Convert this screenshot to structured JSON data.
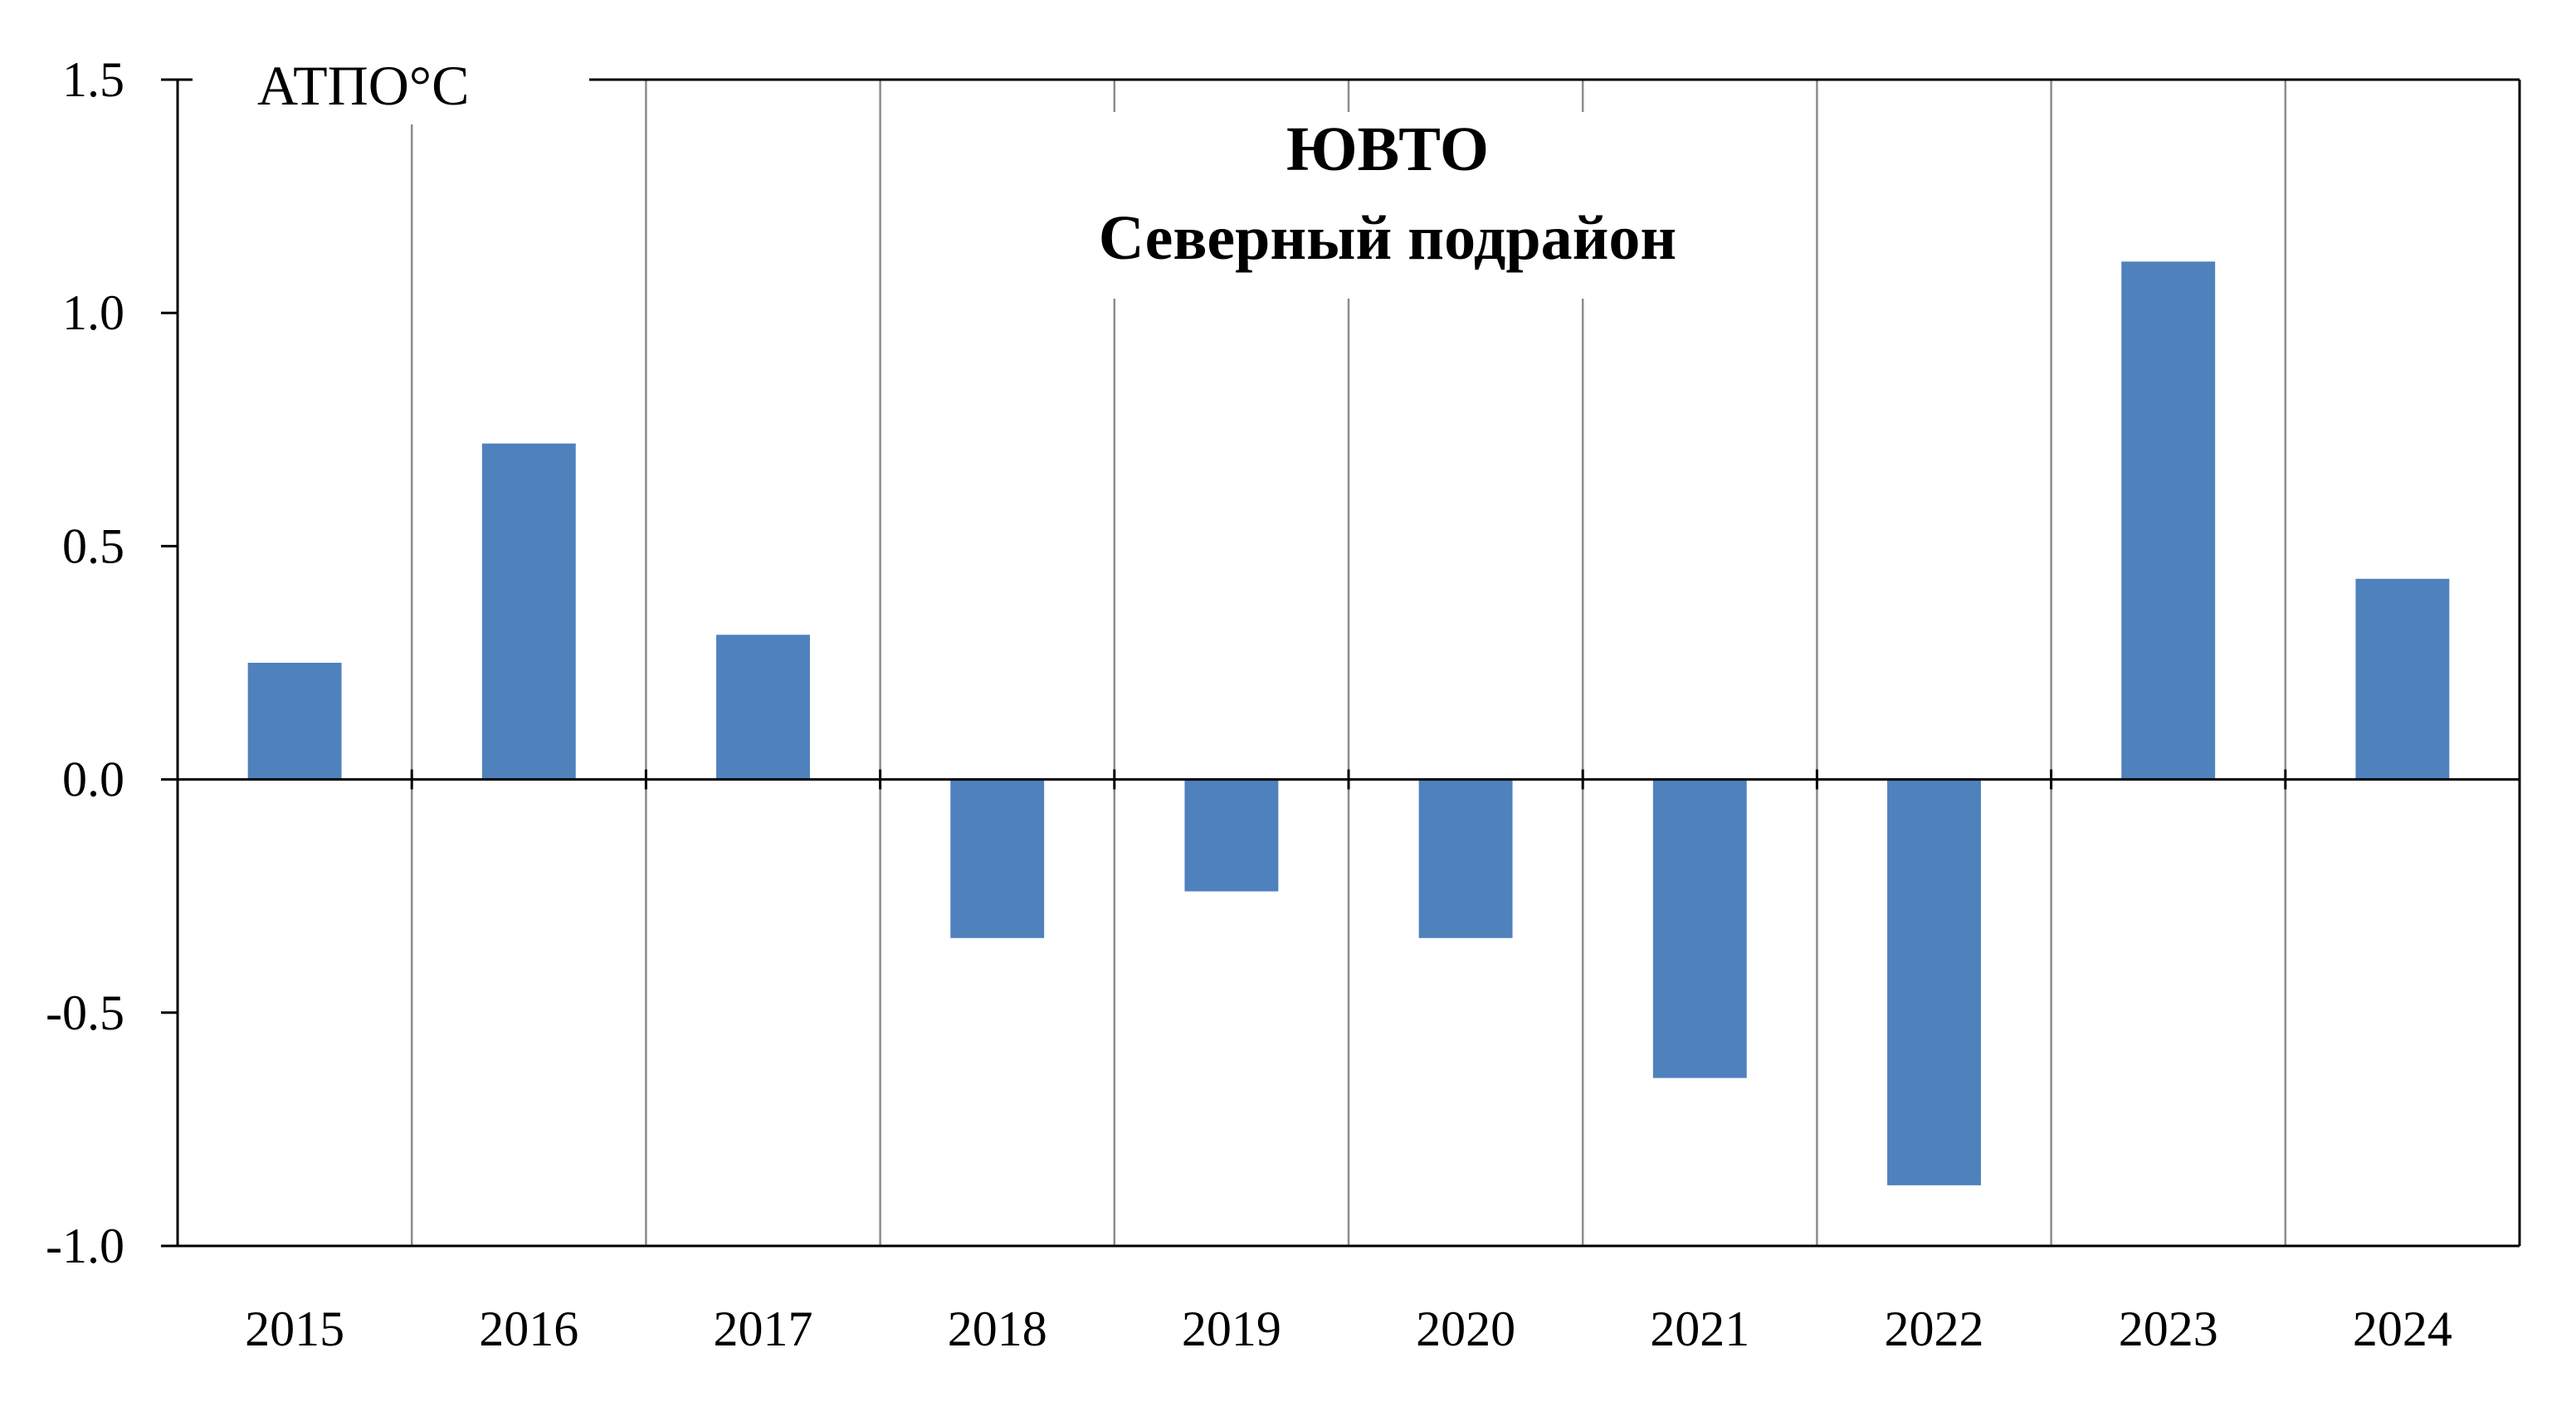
{
  "chart_data": {
    "type": "bar",
    "title": "ЮВТО",
    "subtitle": "Северный подрайон",
    "ylabel": "АТПО°С",
    "categories": [
      "2015",
      "2016",
      "2017",
      "2018",
      "2019",
      "2020",
      "2021",
      "2022",
      "2023",
      "2024"
    ],
    "values": [
      0.25,
      0.72,
      0.31,
      -0.34,
      -0.24,
      -0.34,
      -0.64,
      -0.87,
      1.11,
      0.43
    ],
    "yticks": [
      "1.5",
      "1.0",
      "0.5",
      "0.0",
      "-0.5",
      "-1.0"
    ],
    "ylim": [
      -1.0,
      1.5
    ],
    "bar_color": "#4f81bd",
    "grid": "vertical separators between categories",
    "legend": "none"
  }
}
